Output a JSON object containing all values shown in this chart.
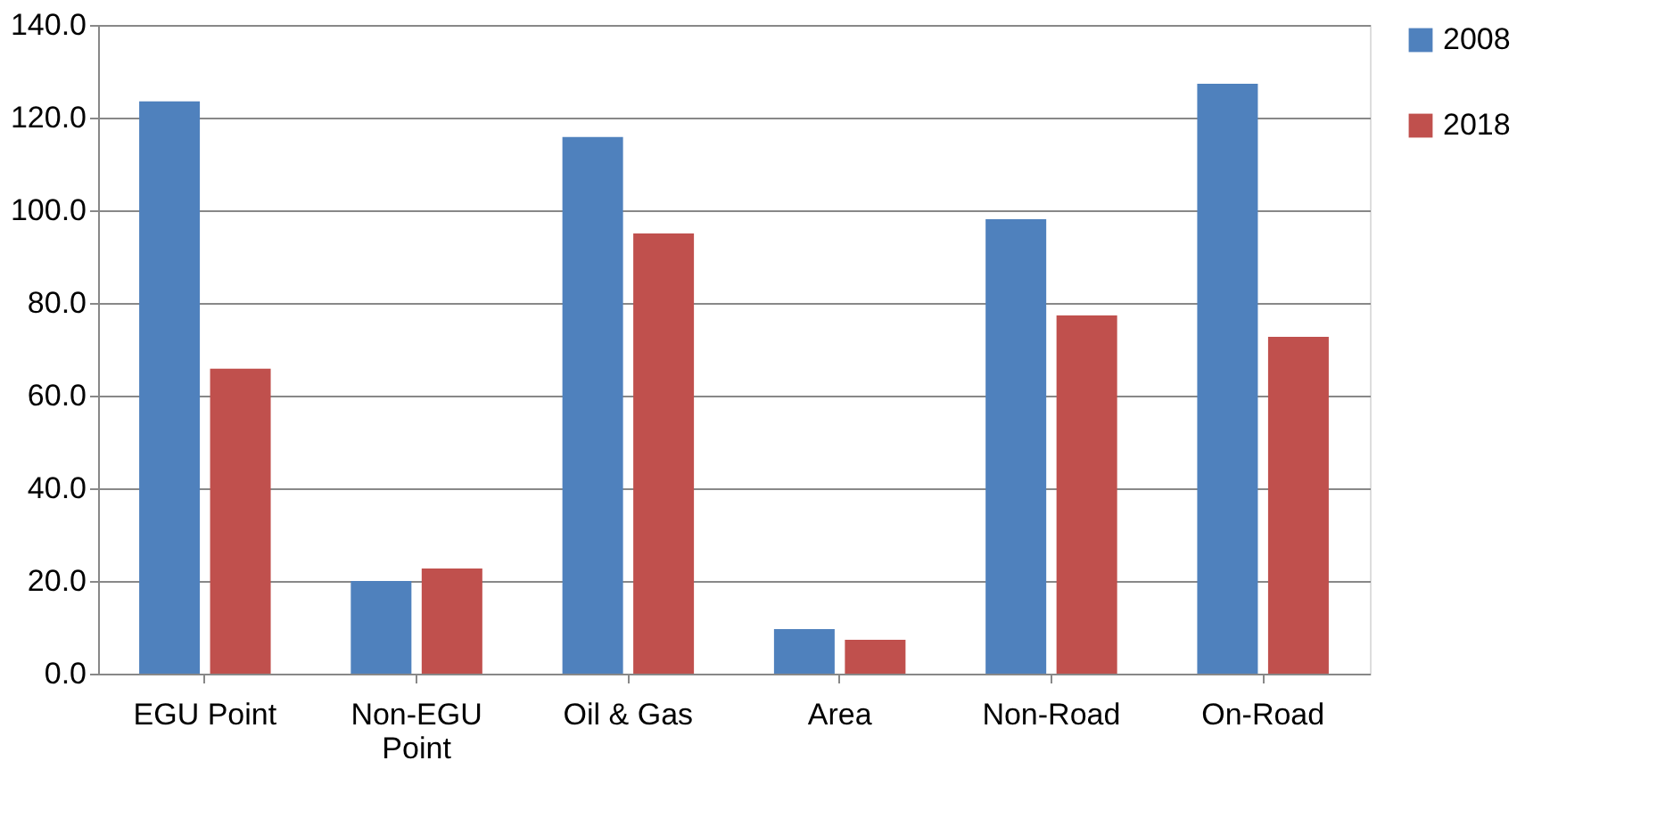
{
  "chart_data": {
    "type": "bar",
    "categories": [
      "EGU Point",
      "Non-EGU Point",
      "Oil & Gas",
      "Area",
      "Non-Road",
      "On-Road"
    ],
    "series": [
      {
        "name": "2008",
        "color": "#4f81bd",
        "values": [
          123.5,
          20.0,
          115.8,
          9.6,
          98.1,
          127.3
        ]
      },
      {
        "name": "2018",
        "color": "#c0504d",
        "values": [
          65.8,
          22.7,
          95.0,
          7.3,
          77.3,
          72.7
        ]
      }
    ],
    "ylim": [
      0,
      140
    ],
    "yticks": [
      {
        "value": 0,
        "label": "0.0"
      },
      {
        "value": 20,
        "label": "20.0"
      },
      {
        "value": 40,
        "label": "40.0"
      },
      {
        "value": 60,
        "label": "60.0"
      },
      {
        "value": 80,
        "label": "80.0"
      },
      {
        "value": 100,
        "label": "100.0"
      },
      {
        "value": 120,
        "label": "120.0"
      },
      {
        "value": 140,
        "label": "140.0"
      }
    ],
    "grid": "y",
    "legend": "right"
  }
}
